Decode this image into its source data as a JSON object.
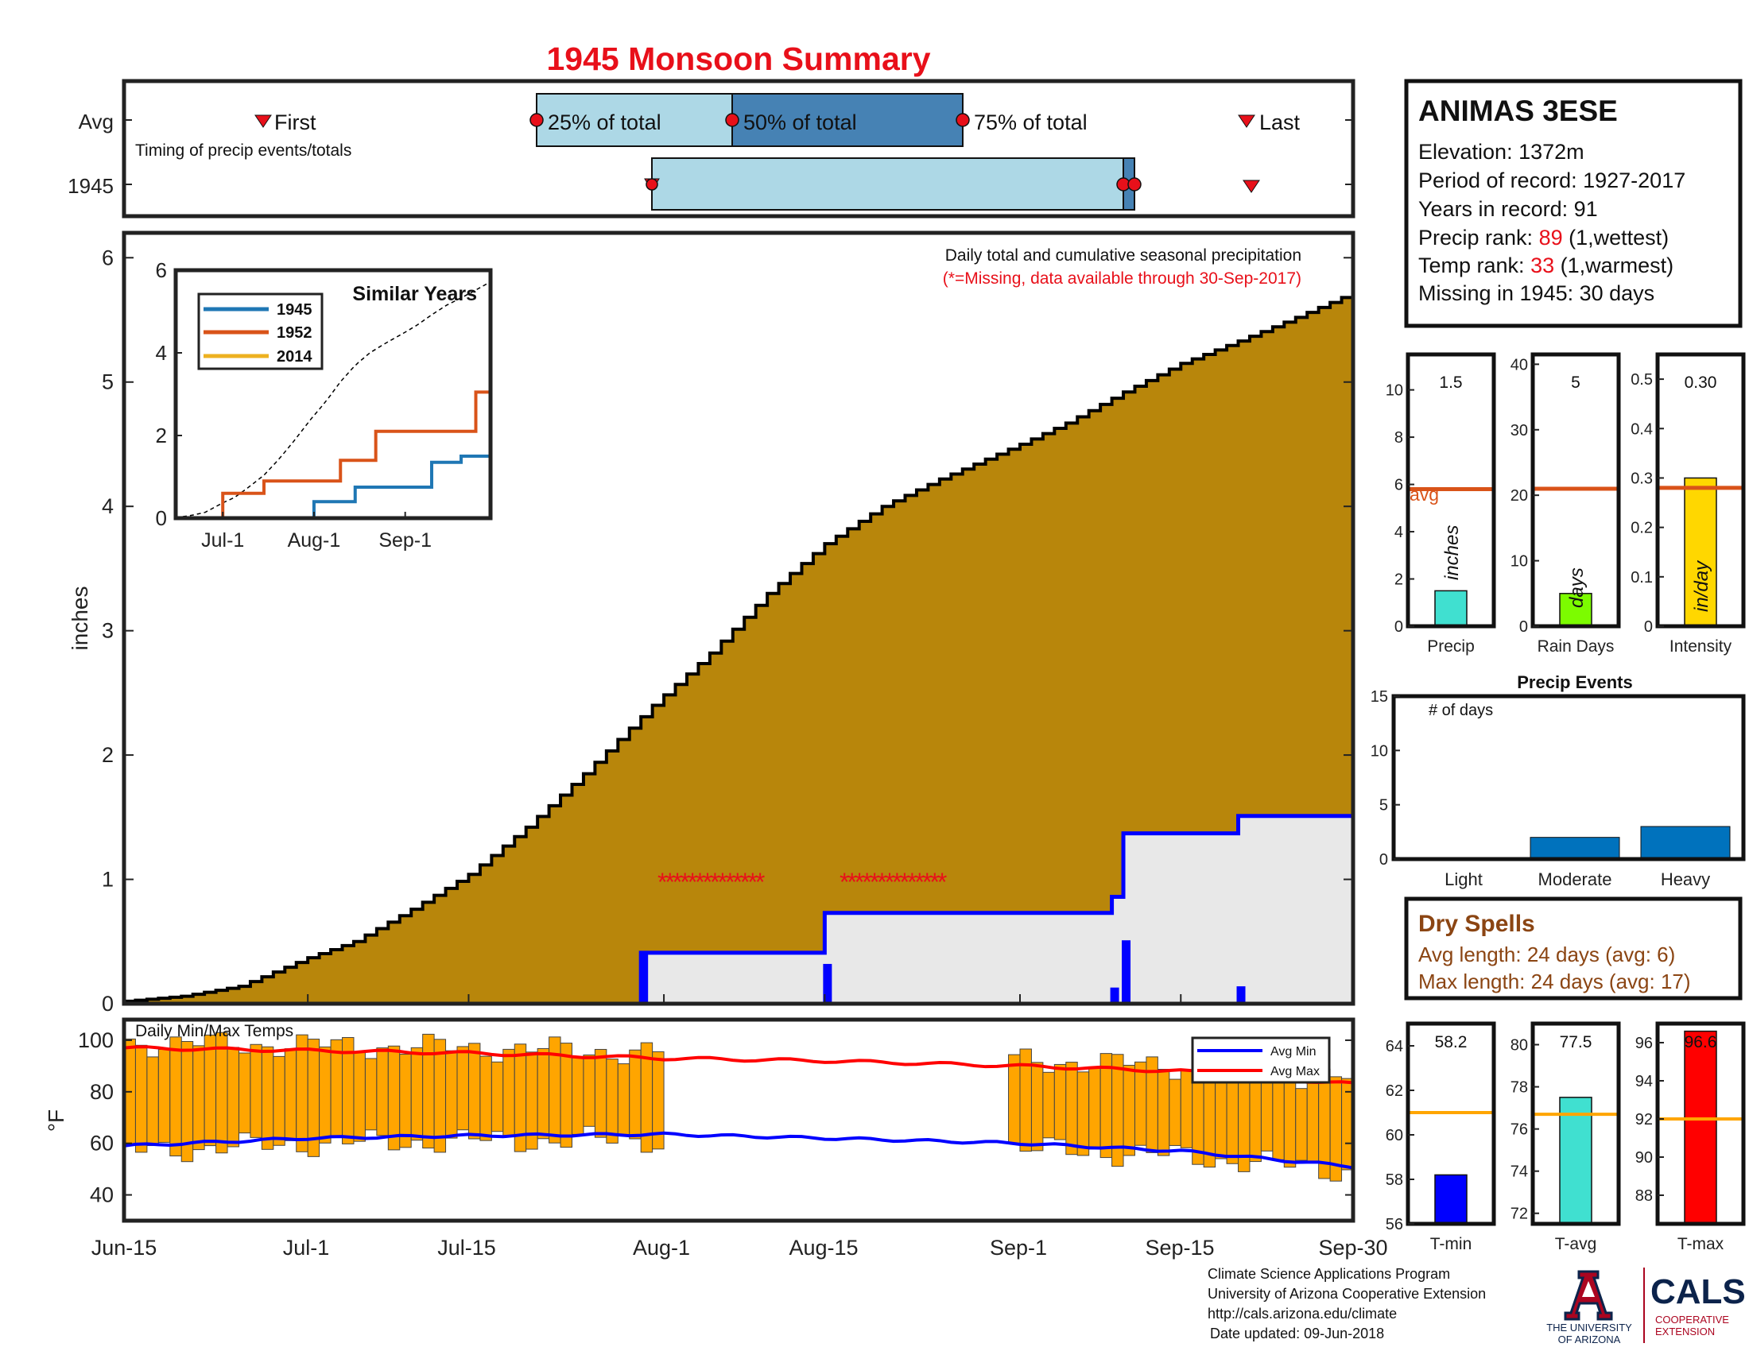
{
  "title": "1945 Monsoon Summary",
  "timing": {
    "row_labels": [
      "Avg",
      "1945"
    ],
    "caption": "Timing of precip events/totals",
    "first_label": "First",
    "last_label": "Last",
    "p25_label": "25% of total",
    "p50_label": "50% of total",
    "p75_label": "75% of total"
  },
  "main": {
    "note1": "Daily total and cumulative seasonal precipitation",
    "note2": "(*=Missing, data available through 30-Sep-2017)",
    "ylabel": "inches",
    "yticks": [
      "0",
      "1",
      "2",
      "3",
      "4",
      "5",
      "6"
    ],
    "missing_marks": [
      "**************",
      "**************"
    ]
  },
  "xticks": [
    "Jun-15",
    "Jul-1",
    "Jul-15",
    "Aug-1",
    "Aug-15",
    "Sep-1",
    "Sep-15",
    "Sep-30"
  ],
  "inset": {
    "title": "Similar Years",
    "yticks": [
      "0",
      "2",
      "4",
      "6"
    ],
    "xticks": [
      "Jul-1",
      "Aug-1",
      "Sep-1"
    ],
    "legend": [
      "1945",
      "1952",
      "2014"
    ]
  },
  "temp": {
    "title": "Daily Min/Max Temps",
    "ylabel": "°F",
    "yticks": [
      "40",
      "60",
      "80",
      "100"
    ],
    "legend_min": "Avg Min",
    "legend_max": "Avg Max"
  },
  "station": {
    "name": "ANIMAS 3ESE",
    "elevation": "Elevation: 1372m",
    "period": "Period of record: 1927-2017",
    "years": "Years in record: 91",
    "precip_rank_prefix": "Precip rank: ",
    "precip_rank": "89",
    "precip_rank_suffix": " (1,wettest)",
    "temp_rank_prefix": "Temp rank: ",
    "temp_rank": "33",
    "temp_rank_suffix": " (1,warmest)",
    "missing": "Missing in 1945: 30 days"
  },
  "mini": {
    "precip": {
      "label": "Precip",
      "value_text": "1.5",
      "unit": "inches",
      "avg_label": "avg",
      "yticks": [
        "0",
        "2",
        "4",
        "6",
        "8",
        "10"
      ]
    },
    "raindays": {
      "label": "Rain Days",
      "value_text": "5",
      "unit": "days",
      "yticks": [
        "0",
        "10",
        "20",
        "30",
        "40"
      ]
    },
    "intensity": {
      "label": "Intensity",
      "value_text": "0.30",
      "unit": "in/day",
      "yticks": [
        "0",
        "0.1",
        "0.2",
        "0.3",
        "0.4",
        "0.5"
      ]
    }
  },
  "events": {
    "title": "Precip Events",
    "sublabel": "# of days",
    "yticks": [
      "0",
      "5",
      "10",
      "15"
    ],
    "categories": [
      "Light",
      "Moderate",
      "Heavy"
    ]
  },
  "dry": {
    "title": "Dry Spells",
    "avg": "Avg length: 24 days (avg: 6)",
    "max": "Max length: 24 days (avg: 17)"
  },
  "tbars": {
    "tmin": {
      "label": "T-min",
      "value_text": "58.2",
      "yticks": [
        "56",
        "58",
        "60",
        "62",
        "64"
      ]
    },
    "tavg": {
      "label": "T-avg",
      "value_text": "77.5",
      "yticks": [
        "72",
        "74",
        "76",
        "78",
        "80"
      ]
    },
    "tmax": {
      "label": "T-max",
      "value_text": "96.6",
      "yticks": [
        "88",
        "90",
        "92",
        "94",
        "96"
      ]
    }
  },
  "footer": {
    "line1": "Climate Science Applications Program",
    "line2": "University of Arizona Cooperative Extension",
    "line3": "http://cals.arizona.edu/climate",
    "line4": "Date updated: 09-Jun-2018",
    "ua_line1": "THE UNIVERSITY",
    "ua_line2": "OF ARIZONA",
    "cals": "CALS",
    "coop1": "COOPERATIVE",
    "coop2": "EXTENSION"
  },
  "chart_data": [
    {
      "type": "area",
      "name": "cumulative_precip",
      "title": "Daily total and cumulative seasonal precipitation",
      "ylabel": "inches",
      "ylim": [
        0,
        6.2
      ],
      "x_range": [
        "Jun-15",
        "Sep-30"
      ],
      "series": [
        {
          "name": "Average cumulative",
          "color": "#b8860b",
          "points": [
            [
              "Jun-15",
              0.02
            ],
            [
              "Jun-20",
              0.06
            ],
            [
              "Jun-25",
              0.14
            ],
            [
              "Jul-1",
              0.37
            ],
            [
              "Jul-5",
              0.5
            ],
            [
              "Jul-10",
              0.76
            ],
            [
              "Jul-15",
              1.04
            ],
            [
              "Jul-20",
              1.42
            ],
            [
              "Jul-25",
              1.85
            ],
            [
              "Jul-31",
              2.4
            ],
            [
              "Aug-5",
              2.82
            ],
            [
              "Aug-10",
              3.3
            ],
            [
              "Aug-15",
              3.7
            ],
            [
              "Aug-20",
              4.0
            ],
            [
              "Aug-25",
              4.22
            ],
            [
              "Sep-1",
              4.5
            ],
            [
              "Sep-5",
              4.67
            ],
            [
              "Sep-10",
              4.92
            ],
            [
              "Sep-15",
              5.15
            ],
            [
              "Sep-20",
              5.33
            ],
            [
              "Sep-25",
              5.52
            ],
            [
              "Sep-30",
              5.72
            ]
          ]
        },
        {
          "name": "1945 cumulative",
          "color": "#0000ff",
          "points": [
            [
              "Jun-15",
              0
            ],
            [
              "Jul-30",
              0
            ],
            [
              "Jul-30",
              0.41
            ],
            [
              "Aug-15",
              0.41
            ],
            [
              "Aug-15",
              0.73
            ],
            [
              "Sep-9",
              0.73
            ],
            [
              "Sep-9",
              0.86
            ],
            [
              "Sep-10",
              0.86
            ],
            [
              "Sep-10",
              1.37
            ],
            [
              "Sep-20",
              1.37
            ],
            [
              "Sep-20",
              1.51
            ],
            [
              "Sep-30",
              1.51
            ]
          ]
        },
        {
          "name": "1945 daily",
          "color": "#0000ff",
          "points": [
            [
              "Jul-30",
              0.41
            ],
            [
              "Aug-15",
              0.32
            ],
            [
              "Sep-9",
              0.13
            ],
            [
              "Sep-10",
              0.51
            ],
            [
              "Sep-20",
              0.14
            ]
          ]
        }
      ],
      "missing_range": [
        "Aug-1",
        "Aug-30"
      ]
    },
    {
      "type": "line",
      "name": "similar_years",
      "title": "Similar Years",
      "ylim": [
        0,
        6
      ],
      "series": [
        {
          "name": "1945",
          "color": "#1f77b4",
          "points": [
            [
              "Jun-15",
              0
            ],
            [
              "Aug-1",
              0
            ],
            [
              "Aug-1",
              0.4
            ],
            [
              "Aug-15",
              0.4
            ],
            [
              "Aug-15",
              0.75
            ],
            [
              "Sep-10",
              0.75
            ],
            [
              "Sep-10",
              1.35
            ],
            [
              "Sep-20",
              1.35
            ],
            [
              "Sep-20",
              1.5
            ],
            [
              "Sep-30",
              1.5
            ]
          ]
        },
        {
          "name": "1952",
          "color": "#d95319",
          "points": [
            [
              "Jun-15",
              0
            ],
            [
              "Jul-1",
              0
            ],
            [
              "Jul-1",
              0.6
            ],
            [
              "Jul-15",
              0.6
            ],
            [
              "Jul-15",
              0.9
            ],
            [
              "Aug-10",
              0.9
            ],
            [
              "Aug-10",
              1.4
            ],
            [
              "Aug-22",
              1.4
            ],
            [
              "Aug-22",
              2.1
            ],
            [
              "Sep-25",
              2.1
            ],
            [
              "Sep-25",
              3.05
            ],
            [
              "Sep-30",
              3.05
            ]
          ]
        },
        {
          "name": "2014",
          "color": "#edb120",
          "points": [
            [
              "Jun-15",
              0
            ],
            [
              "Sep-30",
              0
            ]
          ]
        }
      ]
    },
    {
      "type": "bar",
      "name": "seasonal_totals",
      "categories": [
        "Precip",
        "Rain Days",
        "Intensity"
      ],
      "values": [
        1.5,
        5,
        0.3
      ],
      "averages": [
        5.8,
        21,
        0.28
      ],
      "ylims": [
        [
          0,
          11.5
        ],
        [
          0,
          41.5
        ],
        [
          0,
          0.55
        ]
      ]
    },
    {
      "type": "bar",
      "name": "precip_events",
      "title": "Precip Events",
      "categories": [
        "Light",
        "Moderate",
        "Heavy"
      ],
      "values": [
        0,
        2,
        3
      ],
      "ylim": [
        0,
        15
      ]
    },
    {
      "type": "bar",
      "name": "daily_temps",
      "title": "Daily Min/Max Temps",
      "ylabel": "°F",
      "ylim": [
        30,
        108
      ],
      "avg_max": [
        [
          "Jun-15",
          97
        ],
        [
          "Jul-1",
          96
        ],
        [
          "Jul-15",
          95
        ],
        [
          "Aug-1",
          93
        ],
        [
          "Aug-15",
          92
        ],
        [
          "Sep-1",
          90
        ],
        [
          "Sep-15",
          88
        ],
        [
          "Sep-30",
          83
        ]
      ],
      "avg_min": [
        [
          "Jun-15",
          59
        ],
        [
          "Jul-1",
          62
        ],
        [
          "Jul-15",
          63
        ],
        [
          "Aug-1",
          63.5
        ],
        [
          "Aug-15",
          62
        ],
        [
          "Sep-1",
          60
        ],
        [
          "Sep-15",
          57
        ],
        [
          "Sep-30",
          51
        ]
      ],
      "bars_range": [
        [
          "Jun-15",
          "Jul-31"
        ],
        [
          "Aug-31",
          "Sep-30"
        ]
      ]
    },
    {
      "type": "bar",
      "name": "seasonal_temps",
      "categories": [
        "T-min",
        "T-avg",
        "T-max"
      ],
      "values": [
        58.2,
        77.5,
        96.6
      ],
      "averages": [
        61,
        76.7,
        92
      ],
      "ylims": [
        [
          56,
          65
        ],
        [
          71.5,
          81
        ],
        [
          86.5,
          97
        ]
      ]
    }
  ]
}
